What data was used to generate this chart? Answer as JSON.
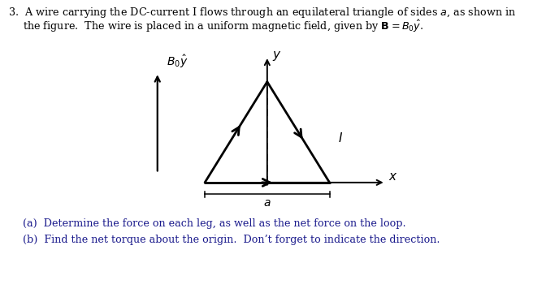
{
  "bg_color": "#ffffff",
  "text_color": "#000000",
  "part_color": "#1a1a8c",
  "fig_width": 6.72,
  "fig_height": 3.77,
  "line1": "3.  A wire carrying the DC-current I flows through an equilateral triangle of sides $a$, as shown in",
  "line2": "the figure.  The wire is placed in a uniform magnetic field, given by $\\mathbf{B} = B_0\\hat{y}$.",
  "part_a": "(a)  Determine the force on each leg, as well as the net force on the loop.",
  "part_b": "(b)  Find the net torque about the origin.  Don’t forget to indicate the direction."
}
